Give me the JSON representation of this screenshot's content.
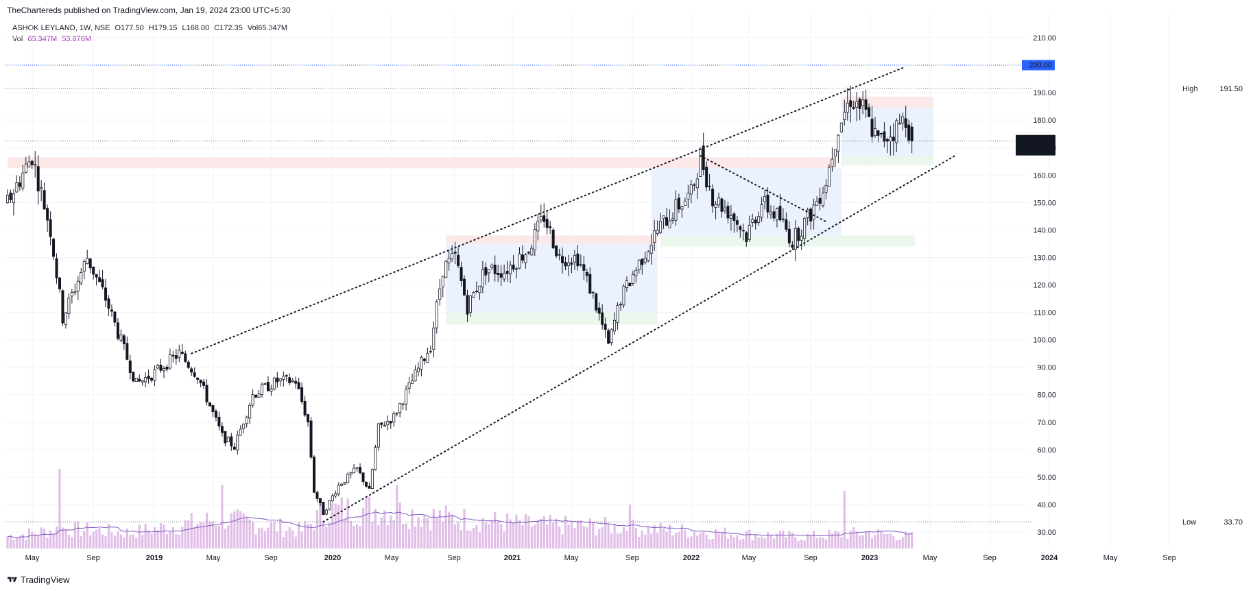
{
  "publisher": "TheChartereds published on TradingView.com, Jan 19, 2024 23:00 UTC+5:30",
  "legend": {
    "symbol": "ASHOK LEYLAND, 1W, NSE",
    "open": "O177.50",
    "high": "H179.15",
    "low": "L168.00",
    "close": "C172.35",
    "volume": "Vol65.347M",
    "vol_label": "Vol",
    "vol_value": "65.347M",
    "vol_ma": "53.876M"
  },
  "footer": {
    "brand": "TradingView"
  },
  "colors": {
    "candle": "#131722",
    "volume": "#e1bee7",
    "volume_ma": "#7e57c2",
    "resistance_zone": "#fce4e4",
    "support_zone": "#e8f5e9",
    "range_zone": "#e8f0fe",
    "price_badge": "#131722",
    "level_badge": "#2962ff"
  },
  "chart_data": {
    "type": "candlestick",
    "interval": "1W",
    "y_axis": {
      "ticks": [
        "210.00",
        "200.00",
        "190.00",
        "180.00",
        "170.00",
        "160.00",
        "150.00",
        "140.00",
        "130.00",
        "120.00",
        "110.00",
        "100.00",
        "90.00",
        "80.00",
        "70.00",
        "60.00",
        "50.00",
        "40.00",
        "30.00"
      ],
      "ylim": [
        27,
        215
      ]
    },
    "x_axis": {
      "ticks": [
        "May",
        "Sep",
        "2019",
        "May",
        "Sep",
        "2020",
        "May",
        "Sep",
        "2021",
        "May",
        "Sep",
        "2022",
        "May",
        "Sep",
        "2023",
        "May",
        "Sep",
        "2024",
        "May",
        "Sep"
      ],
      "year_ticks": [
        "2019",
        "2020",
        "2021",
        "2022",
        "2023",
        "2024"
      ]
    },
    "last_price": "172.35",
    "countdown": "13:59:14",
    "level_200": "200.00",
    "high": {
      "label": "High",
      "value": "191.50"
    },
    "low": {
      "label": "Low",
      "value": "33.70"
    },
    "anchors": [
      {
        "t": 0,
        "p": 150
      },
      {
        "t": 8,
        "p": 167
      },
      {
        "t": 14,
        "p": 140
      },
      {
        "t": 18,
        "p": 108
      },
      {
        "t": 26,
        "p": 130
      },
      {
        "t": 32,
        "p": 115
      },
      {
        "t": 42,
        "p": 84
      },
      {
        "t": 48,
        "p": 88
      },
      {
        "t": 56,
        "p": 95
      },
      {
        "t": 62,
        "p": 87
      },
      {
        "t": 70,
        "p": 65
      },
      {
        "t": 74,
        "p": 61
      },
      {
        "t": 80,
        "p": 80
      },
      {
        "t": 88,
        "p": 85
      },
      {
        "t": 94,
        "p": 85
      },
      {
        "t": 98,
        "p": 70
      },
      {
        "t": 100,
        "p": 45
      },
      {
        "t": 103,
        "p": 37
      },
      {
        "t": 108,
        "p": 47
      },
      {
        "t": 114,
        "p": 53
      },
      {
        "t": 118,
        "p": 45
      },
      {
        "t": 121,
        "p": 68
      },
      {
        "t": 126,
        "p": 72
      },
      {
        "t": 132,
        "p": 85
      },
      {
        "t": 138,
        "p": 98
      },
      {
        "t": 142,
        "p": 126
      },
      {
        "t": 146,
        "p": 130
      },
      {
        "t": 150,
        "p": 112
      },
      {
        "t": 156,
        "p": 126
      },
      {
        "t": 162,
        "p": 125
      },
      {
        "t": 170,
        "p": 133
      },
      {
        "t": 175,
        "p": 145
      },
      {
        "t": 180,
        "p": 130
      },
      {
        "t": 186,
        "p": 130
      },
      {
        "t": 191,
        "p": 116
      },
      {
        "t": 196,
        "p": 98
      },
      {
        "t": 200,
        "p": 115
      },
      {
        "t": 206,
        "p": 128
      },
      {
        "t": 212,
        "p": 140
      },
      {
        "t": 218,
        "p": 148
      },
      {
        "t": 223,
        "p": 153
      },
      {
        "t": 226,
        "p": 167
      },
      {
        "t": 230,
        "p": 152
      },
      {
        "t": 236,
        "p": 146
      },
      {
        "t": 241,
        "p": 138
      },
      {
        "t": 246,
        "p": 150
      },
      {
        "t": 252,
        "p": 144
      },
      {
        "t": 256,
        "p": 136
      },
      {
        "t": 262,
        "p": 146
      },
      {
        "t": 267,
        "p": 158
      },
      {
        "t": 271,
        "p": 178
      },
      {
        "t": 275,
        "p": 188
      },
      {
        "t": 279,
        "p": 184
      },
      {
        "t": 284,
        "p": 172
      },
      {
        "t": 289,
        "p": 176
      },
      {
        "t": 293,
        "p": 181
      },
      {
        "t": 295,
        "p": 172.35
      }
    ],
    "vol_anchors": [
      {
        "t": 0,
        "v": 0.3
      },
      {
        "t": 18,
        "v": 0.5
      },
      {
        "t": 40,
        "v": 0.4
      },
      {
        "t": 70,
        "v": 0.75
      },
      {
        "t": 96,
        "v": 0.45
      },
      {
        "t": 104,
        "v": 0.95
      },
      {
        "t": 120,
        "v": 1.0
      },
      {
        "t": 140,
        "v": 0.8
      },
      {
        "t": 170,
        "v": 0.6
      },
      {
        "t": 196,
        "v": 0.55
      },
      {
        "t": 230,
        "v": 0.4
      },
      {
        "t": 260,
        "v": 0.3
      },
      {
        "t": 280,
        "v": 0.4
      },
      {
        "t": 295,
        "v": 0.3
      }
    ],
    "vol_spikes": [
      {
        "t": 17,
        "v": 2.0
      },
      {
        "t": 70,
        "v": 1.6
      },
      {
        "t": 127,
        "v": 1.6
      },
      {
        "t": 273,
        "v": 1.45
      },
      {
        "t": 203,
        "v": 1.1
      }
    ],
    "trendlines": [
      {
        "from": {
          "t": 60,
          "p": 95
        },
        "to": {
          "t": 292,
          "p": 199
        }
      },
      {
        "from": {
          "t": 103,
          "p": 33.7
        },
        "to": {
          "t": 309,
          "p": 167
        }
      },
      {
        "from": {
          "t": 226,
          "p": 167
        },
        "to": {
          "t": 267,
          "p": 143
        }
      }
    ],
    "zones": [
      {
        "kind": "resistance",
        "t0": 0,
        "t1": 270,
        "p0": 162.5,
        "p1": 166.5
      },
      {
        "kind": "resistance",
        "t0": 143,
        "t1": 212,
        "p0": 135,
        "p1": 138
      },
      {
        "kind": "range",
        "t0": 143,
        "t1": 212,
        "p0": 110,
        "p1": 135
      },
      {
        "kind": "support",
        "t0": 143,
        "t1": 212,
        "p0": 105.5,
        "p1": 110
      },
      {
        "kind": "range",
        "t0": 210,
        "t1": 272,
        "p0": 138,
        "p1": 162.5
      },
      {
        "kind": "support",
        "t0": 213,
        "t1": 296,
        "p0": 134,
        "p1": 138
      },
      {
        "kind": "resistance",
        "t0": 272,
        "t1": 302,
        "p0": 184.5,
        "p1": 188.5
      },
      {
        "kind": "range",
        "t0": 272,
        "t1": 302,
        "p0": 167,
        "p1": 184.5
      },
      {
        "kind": "support",
        "t0": 272,
        "t1": 302,
        "p0": 163.5,
        "p1": 167
      }
    ]
  }
}
